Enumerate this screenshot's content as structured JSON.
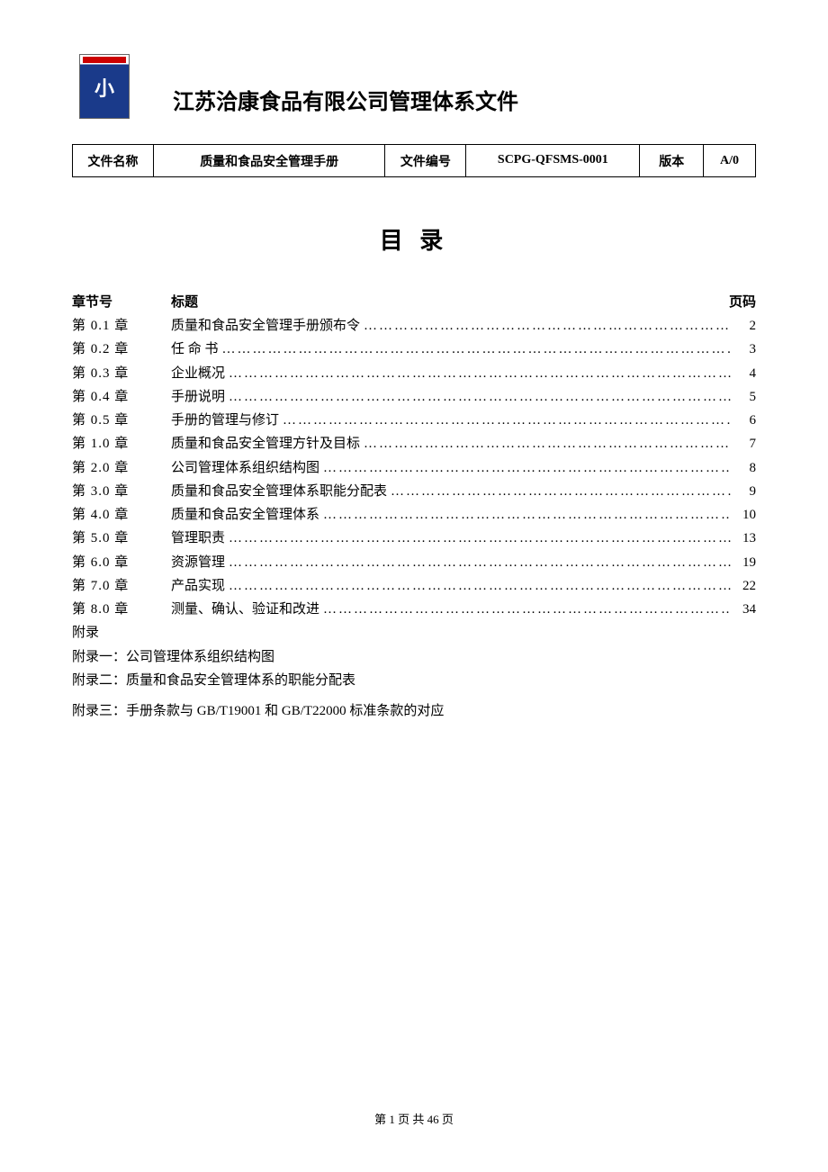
{
  "header": {
    "company_title": "江苏洽康食品有限公司管理体系文件"
  },
  "doc_info": {
    "name_label": "文件名称",
    "name_value": "质量和食品安全管理手册",
    "number_label": "文件编号",
    "number_value": "SCPG-QFSMS-0001",
    "version_label": "版本",
    "version_value": "A/0"
  },
  "toc": {
    "title": "目 录",
    "chapter_label": "章节号",
    "title_label": "标题",
    "page_label": "页码",
    "entries": [
      {
        "chapter": "第 0.1 章",
        "title": "质量和食品安全管理手册颁布令",
        "page": "2"
      },
      {
        "chapter": "第 0.2 章",
        "title": "任 命 书",
        "page": "3"
      },
      {
        "chapter": "第 0.3 章",
        "title": "企业概况",
        "page": "4"
      },
      {
        "chapter": "第 0.4 章",
        "title": "手册说明",
        "page": "5"
      },
      {
        "chapter": "第 0.5  章",
        "title": " 手册的管理与修订",
        "page": " 6"
      },
      {
        "chapter": "第 1.0 章",
        "title": "质量和食品安全管理方针及目标",
        "page": "7"
      },
      {
        "chapter": "第 2.0 章",
        "title": "公司管理体系组织结构图",
        "page": "8"
      },
      {
        "chapter": "第 3.0 章",
        "title": "质量和食品安全管理体系职能分配表",
        "page": "9"
      },
      {
        "chapter": "第 4.0 章",
        "title": "质量和食品安全管理体系",
        "page": "10"
      },
      {
        "chapter": "第 5.0 章",
        "title": "管理职责",
        "page": "13"
      },
      {
        "chapter": "第 6.0 章",
        "title": "资源管理",
        "page": "19"
      },
      {
        "chapter": "第 7.0 章",
        "title": "产品实现",
        "page": "22"
      },
      {
        "chapter": "第 8.0 章",
        "title": " 测量、确认、验证和改进",
        "page": " 34"
      }
    ],
    "appendix_label": "附录",
    "appendix_items": [
      "附录一：公司管理体系组织结构图",
      "附录二：质量和食品安全管理体系的职能分配表",
      "附录三：手册条款与 GB/T19001  和 GB/T22000 标准条款的对应"
    ]
  },
  "footer": {
    "page_text": "第 1 页  共 46 页"
  },
  "style": {
    "background_color": "#ffffff",
    "text_color": "#000000",
    "border_color": "#000000",
    "title_fontsize": 26,
    "body_fontsize": 15,
    "table_fontsize": 14,
    "footer_fontsize": 13
  }
}
